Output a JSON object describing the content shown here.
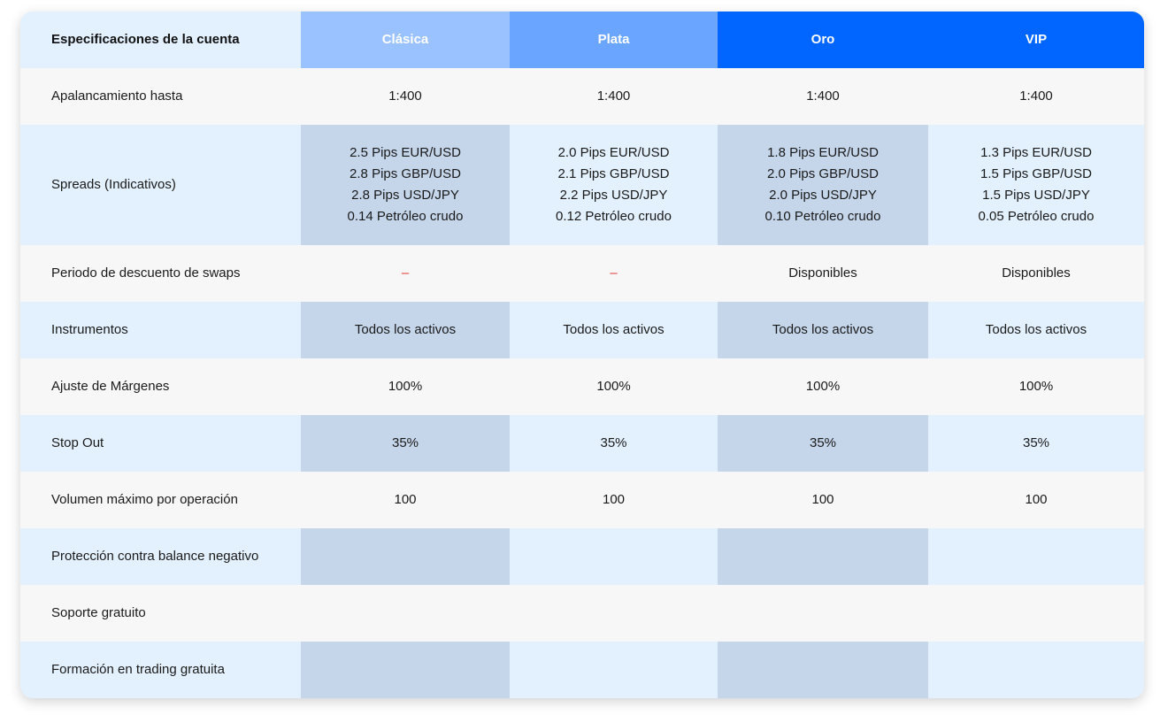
{
  "header": {
    "title": "Especificaciones de la cuenta",
    "columns": [
      "Clásica",
      "Plata",
      "Oro",
      "VIP"
    ]
  },
  "rows": [
    {
      "label": "Apalancamiento hasta",
      "cells": [
        "1:400",
        "1:400",
        "1:400",
        "1:400"
      ]
    },
    {
      "label": "Spreads (Indicativos)",
      "cells": [
        [
          "2.5 Pips EUR/USD",
          "2.8 Pips GBP/USD",
          "2.8 Pips USD/JPY",
          "0.14 Petróleo crudo"
        ],
        [
          "2.0 Pips EUR/USD",
          "2.1 Pips GBP/USD",
          "2.2 Pips USD/JPY",
          "0.12 Petróleo crudo"
        ],
        [
          "1.8 Pips EUR/USD",
          "2.0 Pips GBP/USD",
          "2.0 Pips USD/JPY",
          "0.10 Petróleo crudo"
        ],
        [
          "1.3 Pips EUR/USD",
          "1.5 Pips GBP/USD",
          "1.5 Pips USD/JPY",
          "0.05 Petróleo crudo"
        ]
      ]
    },
    {
      "label": "Periodo de descuento de swaps",
      "cells": [
        "–",
        "–",
        "Disponibles",
        "Disponibles"
      ]
    },
    {
      "label": "Instrumentos",
      "cells": [
        "Todos los activos",
        "Todos los activos",
        "Todos los activos",
        "Todos los activos"
      ]
    },
    {
      "label": "Ajuste de Márgenes",
      "cells": [
        "100%",
        "100%",
        "100%",
        "100%"
      ]
    },
    {
      "label": "Stop Out",
      "cells": [
        "35%",
        "35%",
        "35%",
        "35%"
      ]
    },
    {
      "label": "Volumen máximo por operación",
      "cells": [
        "100",
        "100",
        "100",
        "100"
      ]
    },
    {
      "label": "Protección contra balance negativo"
    },
    {
      "label": "Soporte gratuito"
    },
    {
      "label": "Formación en trading gratuita"
    }
  ]
}
